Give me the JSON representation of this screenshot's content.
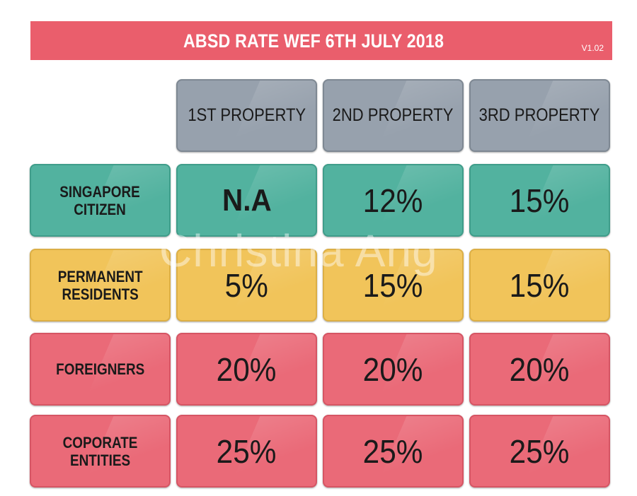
{
  "banner": {
    "title": "ABSD RATE WEF 6TH JULY 2018",
    "version": "V1.02"
  },
  "columns": [
    "1ST PROPERTY",
    "2ND PROPERTY",
    "3RD PROPERTY"
  ],
  "rows": [
    {
      "label": "SINGAPORE\nCITIZEN",
      "values": [
        "N.A",
        "12%",
        "15%"
      ],
      "color": "#52b29f"
    },
    {
      "label": "PERMANENT\nRESIDENTS",
      "values": [
        "5%",
        "15%",
        "15%"
      ],
      "color": "#f1c45a"
    },
    {
      "label": "FOREIGNERS",
      "values": [
        "20%",
        "20%",
        "20%"
      ],
      "color": "#ea6a78"
    },
    {
      "label": "COPORATE\nENTITIES",
      "values": [
        "25%",
        "25%",
        "25%"
      ],
      "color": "#ea6a78"
    }
  ],
  "colors": {
    "banner": "#ea5e6c",
    "header": "#97a1ad"
  },
  "watermark": "Christina Ang"
}
